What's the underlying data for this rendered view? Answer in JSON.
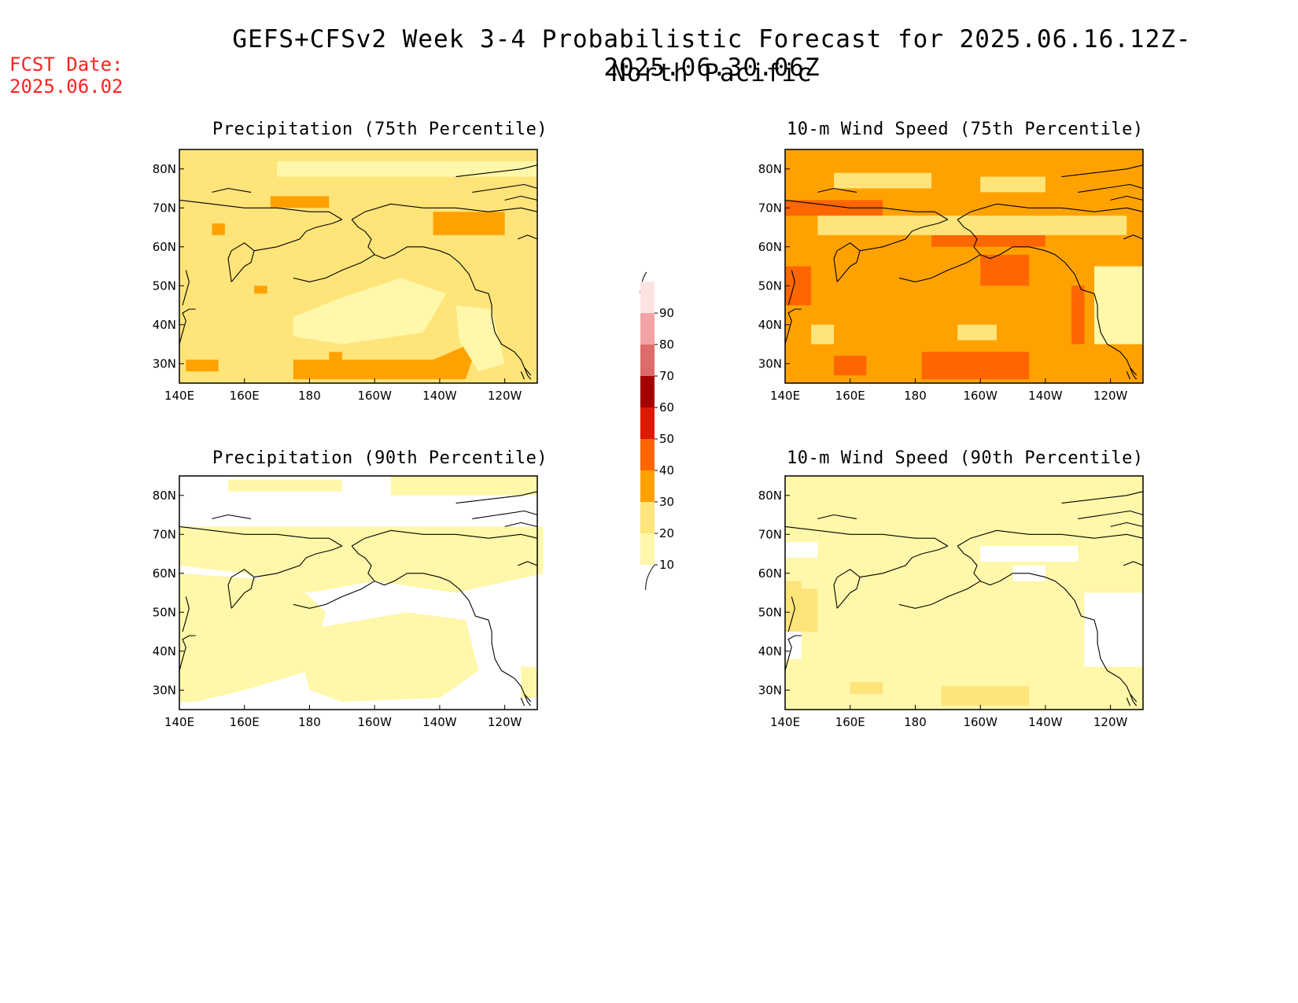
{
  "title": "GEFS+CFSv2 Week 3-4 Probabilistic Forecast for 2025.06.16.12Z-2025.06.30.06Z",
  "subtitle": "North Pacific",
  "fcst_date_label": "FCST Date:",
  "fcst_date_value": "2025.06.02",
  "panels": [
    {
      "title": "Precipitation (75th Percentile)",
      "base_level": 20,
      "patches": "precip75"
    },
    {
      "title": "10-m Wind Speed (75th Percentile)",
      "base_level": 30,
      "patches": "wind75"
    },
    {
      "title": "Precipitation (90th Percentile)",
      "base_level": 0,
      "patches": "precip90"
    },
    {
      "title": "10-m Wind Speed (90th Percentile)",
      "base_level": 10,
      "patches": "wind90"
    }
  ],
  "axes": {
    "lat_ticks": [
      "80N",
      "70N",
      "60N",
      "50N",
      "40N",
      "30N"
    ],
    "lon_ticks": [
      "140E",
      "160E",
      "180",
      "160W",
      "140W",
      "120W"
    ],
    "lat_range": [
      25,
      85
    ],
    "lon_range_east": [
      140,
      250
    ]
  },
  "colorbar": {
    "levels": [
      "10",
      "20",
      "30",
      "40",
      "50",
      "60",
      "70",
      "80",
      "90"
    ],
    "colors": [
      "#fff7aa",
      "#ffe47a",
      "#ffa200",
      "#ff6600",
      "#e11800",
      "#a50000",
      "#de6a6a",
      "#f2a3a3",
      "#ffe3e3"
    ]
  }
}
